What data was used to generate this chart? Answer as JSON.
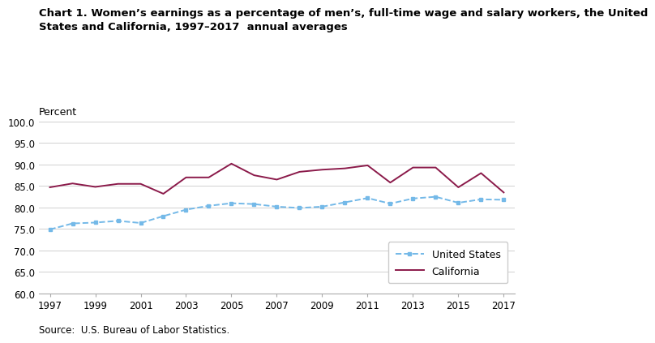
{
  "title_line1": "Chart 1. Women’s earnings as a percentage of men’s, full-time wage and salary workers, the United",
  "title_line2": "States and California, 1997–2017  annual averages",
  "ylabel": "Percent",
  "source": "Source:  U.S. Bureau of Labor Statistics.",
  "years": [
    1997,
    1998,
    1999,
    2000,
    2001,
    2002,
    2003,
    2004,
    2005,
    2006,
    2007,
    2008,
    2009,
    2010,
    2011,
    2012,
    2013,
    2014,
    2015,
    2016,
    2017
  ],
  "us_data": [
    74.9,
    76.3,
    76.5,
    76.9,
    76.4,
    78.0,
    79.5,
    80.4,
    81.0,
    80.8,
    80.2,
    79.9,
    80.2,
    81.2,
    82.2,
    80.9,
    82.1,
    82.5,
    81.1,
    81.9,
    81.8
  ],
  "ca_data": [
    84.7,
    85.6,
    84.8,
    85.5,
    85.5,
    83.2,
    87.0,
    87.0,
    90.2,
    87.5,
    86.5,
    88.3,
    88.8,
    89.1,
    89.8,
    85.8,
    89.3,
    89.3,
    84.7,
    88.0,
    83.5
  ],
  "ylim": [
    60.0,
    100.0
  ],
  "yticks": [
    60.0,
    65.0,
    70.0,
    75.0,
    80.0,
    85.0,
    90.0,
    95.0,
    100.0
  ],
  "xticks": [
    1997,
    1999,
    2001,
    2003,
    2005,
    2007,
    2009,
    2011,
    2013,
    2015,
    2017
  ],
  "us_color": "#74b9e8",
  "ca_color": "#8B1A4A",
  "us_label": "United States",
  "ca_label": "California",
  "bg_color": "#ffffff",
  "grid_color": "#d0d0d0",
  "title_fontsize": 9.5,
  "tick_fontsize": 8.5,
  "legend_fontsize": 9,
  "source_fontsize": 8.5,
  "ylabel_fontsize": 9
}
